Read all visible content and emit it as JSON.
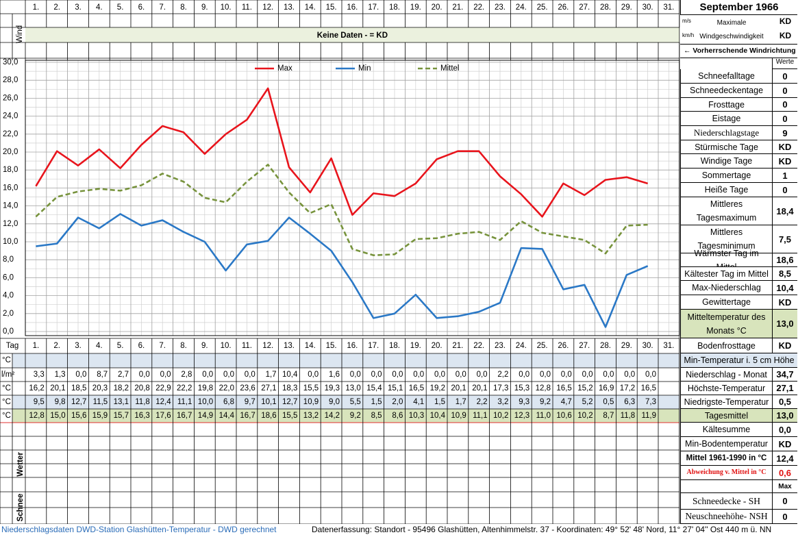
{
  "header": {
    "title": "September 1966"
  },
  "wind": {
    "label": "Wind",
    "units": [
      "m/s",
      "km/h"
    ],
    "caption": "Maximale Windgeschwindigkeit",
    "values": [
      "KD",
      "KD"
    ],
    "note": "Keine Daten -  = KD",
    "direction": "← Vorherrschende Windrichtung"
  },
  "chart_data": {
    "type": "line",
    "categories": [
      "1.",
      "2.",
      "3.",
      "4.",
      "5.",
      "6.",
      "7.",
      "8.",
      "9.",
      "10.",
      "11.",
      "12.",
      "13.",
      "14.",
      "15.",
      "16.",
      "17.",
      "18.",
      "19.",
      "20.",
      "21.",
      "22.",
      "23.",
      "24.",
      "25.",
      "26.",
      "27.",
      "28.",
      "29.",
      "30.",
      "31."
    ],
    "series": [
      {
        "name": "Max",
        "color": "#e8141c",
        "line_style": "solid",
        "values": [
          16.2,
          20.1,
          18.5,
          20.3,
          18.2,
          20.8,
          22.9,
          22.2,
          19.8,
          22.0,
          23.6,
          27.1,
          18.3,
          15.5,
          19.3,
          13.0,
          15.4,
          15.1,
          16.5,
          19.2,
          20.1,
          20.1,
          17.3,
          15.3,
          12.8,
          16.5,
          15.2,
          16.9,
          17.2,
          16.5,
          null
        ],
        "value_labels": [
          "16,2",
          "20,1",
          "18,5",
          "20,3",
          "18,2",
          "20,8",
          "22,9",
          "22,2",
          "19,8",
          "22,0",
          "23,6",
          "27,1",
          "18,3",
          "15,5",
          "19,3",
          "13,0",
          "15,4",
          "15,1",
          "16,5",
          "19,2",
          "20,1",
          "20,1",
          "17,3",
          "15,3",
          "12,8",
          "16,5",
          "15,2",
          "16,9",
          "17,2",
          "16,5",
          null
        ]
      },
      {
        "name": "Min",
        "color": "#2a78c6",
        "line_style": "solid",
        "values": [
          9.5,
          9.8,
          12.7,
          11.5,
          13.1,
          11.8,
          12.4,
          11.1,
          10.0,
          6.8,
          9.7,
          10.1,
          12.7,
          10.9,
          9.0,
          5.5,
          1.5,
          2.0,
          4.1,
          1.5,
          1.7,
          2.2,
          3.2,
          9.3,
          9.2,
          4.7,
          5.2,
          0.5,
          6.3,
          7.3,
          null
        ],
        "value_labels": [
          "9,5",
          "9,8",
          "12,7",
          "11,5",
          "13,1",
          "11,8",
          "12,4",
          "11,1",
          "10,0",
          "6,8",
          "9,7",
          "10,1",
          "12,7",
          "10,9",
          "9,0",
          "5,5",
          "1,5",
          "2,0",
          "4,1",
          "1,5",
          "1,7",
          "2,2",
          "3,2",
          "9,3",
          "9,2",
          "4,7",
          "5,2",
          "0,5",
          "6,3",
          "7,3",
          null
        ]
      },
      {
        "name": "Mittel",
        "color": "#77933c",
        "line_style": "dashed",
        "values": [
          12.8,
          15.0,
          15.6,
          15.9,
          15.7,
          16.3,
          17.6,
          16.7,
          14.9,
          14.4,
          16.7,
          18.6,
          15.5,
          13.2,
          14.2,
          9.2,
          8.5,
          8.6,
          10.3,
          10.4,
          10.9,
          11.1,
          10.2,
          12.3,
          11.0,
          10.6,
          10.2,
          8.7,
          11.8,
          11.9,
          null
        ],
        "value_labels": [
          "12,8",
          "15,0",
          "15,6",
          "15,9",
          "15,7",
          "16,3",
          "17,6",
          "16,7",
          "14,9",
          "14,4",
          "16,7",
          "18,6",
          "15,5",
          "13,2",
          "14,2",
          "9,2",
          "8,5",
          "8,6",
          "10,3",
          "10,4",
          "10,9",
          "11,1",
          "10,2",
          "12,3",
          "11,0",
          "10,6",
          "10,2",
          "8,7",
          "11,8",
          "11,9",
          null
        ]
      }
    ],
    "ylim": [
      0,
      30
    ],
    "yticks": [
      {
        "value": 0,
        "label": "0,0"
      },
      {
        "value": 2,
        "label": "2,0"
      },
      {
        "value": 4,
        "label": "4,0"
      },
      {
        "value": 6,
        "label": "6,0"
      },
      {
        "value": 8,
        "label": "8,0"
      },
      {
        "value": 10,
        "label": "10,0"
      },
      {
        "value": 12,
        "label": "12,0"
      },
      {
        "value": 14,
        "label": "14,0"
      },
      {
        "value": 16,
        "label": "16,0"
      },
      {
        "value": 18,
        "label": "18,0"
      },
      {
        "value": 20,
        "label": "20,0"
      },
      {
        "value": 22,
        "label": "22,0"
      },
      {
        "value": 24,
        "label": "24,0"
      },
      {
        "value": 26,
        "label": "26,0"
      },
      {
        "value": 28,
        "label": "28,0"
      },
      {
        "value": 30,
        "label": "30,0"
      }
    ],
    "grid": true,
    "legend": "top"
  },
  "table": {
    "day_label": "Tag",
    "unit_temperature": "°C",
    "unit_precipitation": "l/m²",
    "precipitation": [
      "3,3",
      "1,3",
      "0,0",
      "8,7",
      "2,7",
      "0,0",
      "0,0",
      "2,8",
      "0,0",
      "0,0",
      "0,0",
      "1,7",
      "10,4",
      "0,0",
      "1,6",
      "0,0",
      "0,0",
      "0,0",
      "0,0",
      "0,0",
      "0,0",
      "0,0",
      "2,2",
      "0,0",
      "0,0",
      "0,0",
      "0,0",
      "0,0",
      "0,0",
      "0,0",
      null
    ]
  },
  "stats_header": "Werte",
  "stats": [
    {
      "label": "Schneefalltage",
      "value": "0"
    },
    {
      "label": "Schneedeckentage",
      "value": "0"
    },
    {
      "label": "Frosttage",
      "value": "0"
    },
    {
      "label": "Eistage",
      "value": "0"
    },
    {
      "label": "Niederschlagstage",
      "value": "9"
    },
    {
      "label": "Stürmische Tage",
      "value": "KD"
    },
    {
      "label": "Windige Tage",
      "value": "KD"
    },
    {
      "label": "Sommertage",
      "value": "1"
    },
    {
      "label": "Heiße Tage",
      "value": "0"
    },
    {
      "label": "Mittleres Tagesmaximum",
      "value": "18,4"
    },
    {
      "label": "Mittleres Tagesminimum",
      "value": "7,5"
    },
    {
      "label": "Wärmster Tag im Mittel",
      "value": "18,6"
    },
    {
      "label": "Kältester Tag im Mittel",
      "value": "8,5"
    },
    {
      "label": "Max-Niederschlag",
      "value": "10,4"
    },
    {
      "label": "Gewittertage",
      "value": "KD"
    },
    {
      "label": "Mitteltemperatur des Monats °C",
      "value": "13,0"
    },
    {
      "label": "Bodenfrosttage",
      "value": "KD"
    },
    {
      "label": "Min-Temperatur i. 5 cm Höhe"
    },
    {
      "label": "Niederschlag - Monat",
      "value": "34,7"
    },
    {
      "label": "Höchste-Temperatur",
      "value": "27,1"
    },
    {
      "label": "Niedrigste-Temperatur",
      "value": "0,5"
    },
    {
      "label": "Tagesmittel",
      "value": "13,0"
    },
    {
      "label": "Kältesumme",
      "value": "0,0"
    },
    {
      "label": "Min-Bodentemperatur",
      "value": "KD"
    },
    {
      "label": "Mittel 1961-1990 in °C",
      "value": "12,4"
    },
    {
      "label": "Abweichung v. Mittel in °C",
      "value": "0,6"
    }
  ],
  "snow": {
    "label": "Schnee",
    "header": "Max",
    "rows": [
      {
        "label": "Schneedecke -  SH",
        "value": "0"
      },
      {
        "label": "Neuschneehöhe- NSH",
        "value": "0"
      }
    ]
  },
  "weather": {
    "label": "Wetter"
  },
  "footer": {
    "left": "Niederschlagsdaten DWD-Station Glashütten-Temperatur -  DWD gerechnet",
    "right": "Datenerfassung: Standort -  95496  Glashütten, Altenhimmelstr. 37 - Koordinaten:  49° 52' 48' Nord,   11° 27' 04'' Ost   440 m ü. NN"
  }
}
